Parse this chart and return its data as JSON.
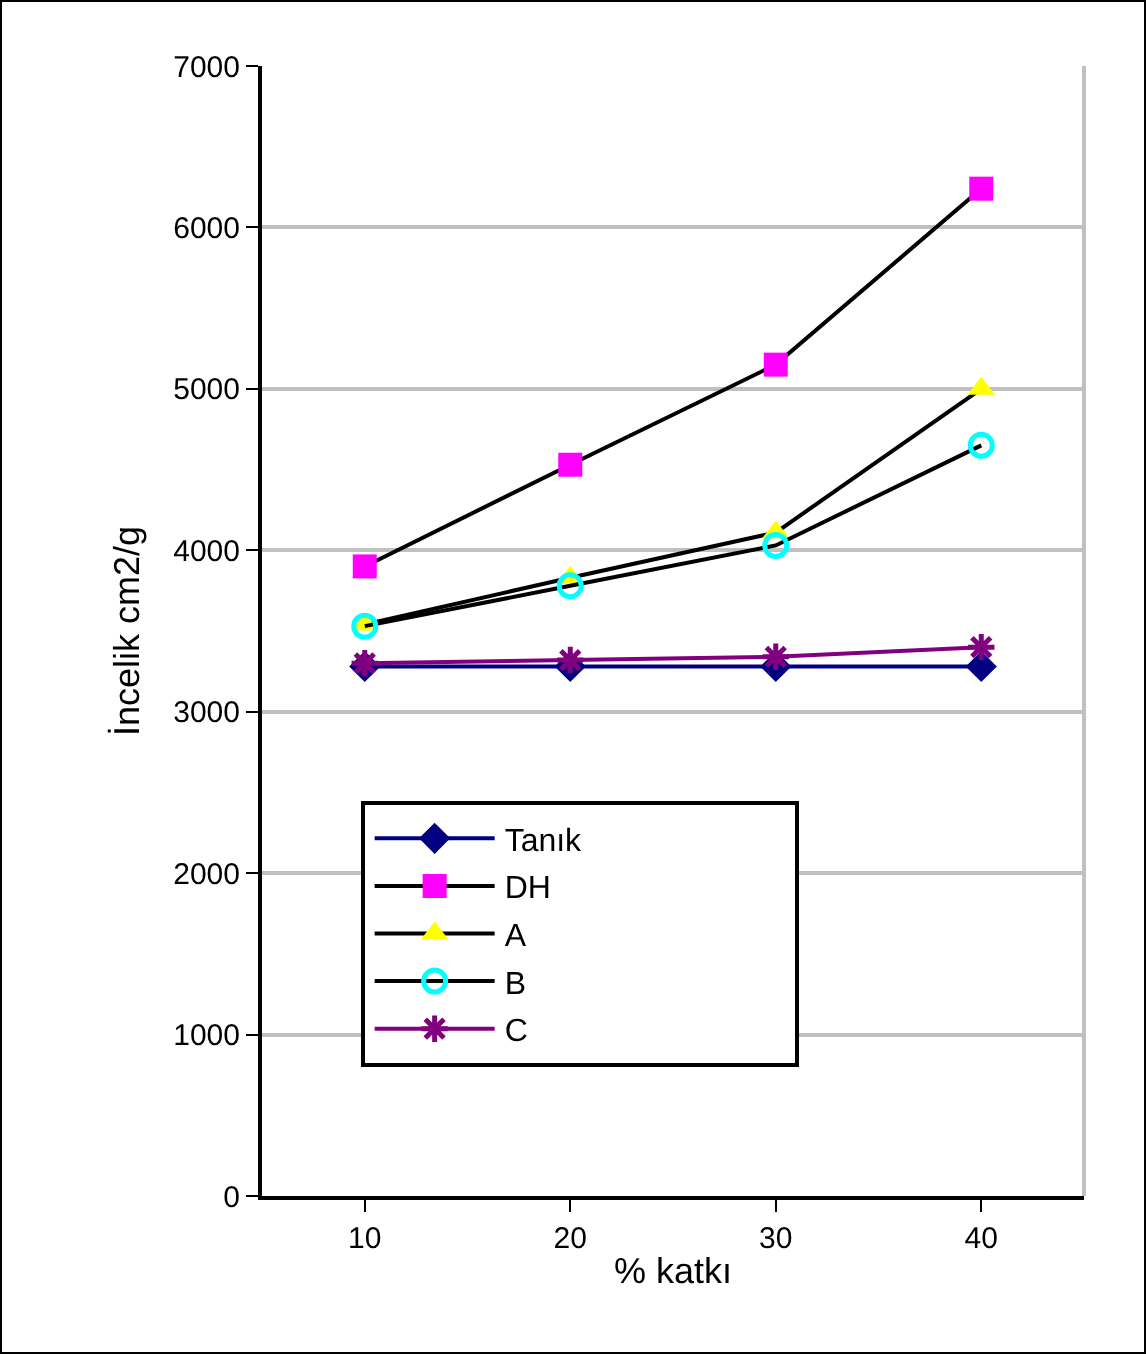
{
  "chart_data": {
    "type": "line",
    "xlabel": "% katkı",
    "ylabel": "İncelik cm2/g",
    "categories": [
      "10",
      "20",
      "30",
      "40"
    ],
    "series": [
      {
        "name": "Tanık",
        "color": "#000080",
        "marker": "diamond",
        "values": [
          3280,
          3280,
          3280,
          3280
        ]
      },
      {
        "name": "DH",
        "color": "#ff00ff",
        "marker": "square",
        "values": [
          3900,
          4530,
          5150,
          6240
        ]
      },
      {
        "name": "A",
        "color": "#ffff00",
        "marker": "triangle",
        "values": [
          3540,
          3830,
          4110,
          5000
        ]
      },
      {
        "name": "B",
        "color": "#00ffff",
        "marker": "circle",
        "values": [
          3530,
          3780,
          4030,
          4650
        ]
      },
      {
        "name": "C",
        "color": "#800080",
        "marker": "cross",
        "values": [
          3300,
          3320,
          3340,
          3400
        ]
      }
    ],
    "ylim": [
      0,
      7000
    ],
    "yticks": [
      0,
      1000,
      2000,
      3000,
      4000,
      5000,
      6000,
      7000
    ],
    "grid": "y",
    "legend": "bottom",
    "line_style": "solid"
  }
}
